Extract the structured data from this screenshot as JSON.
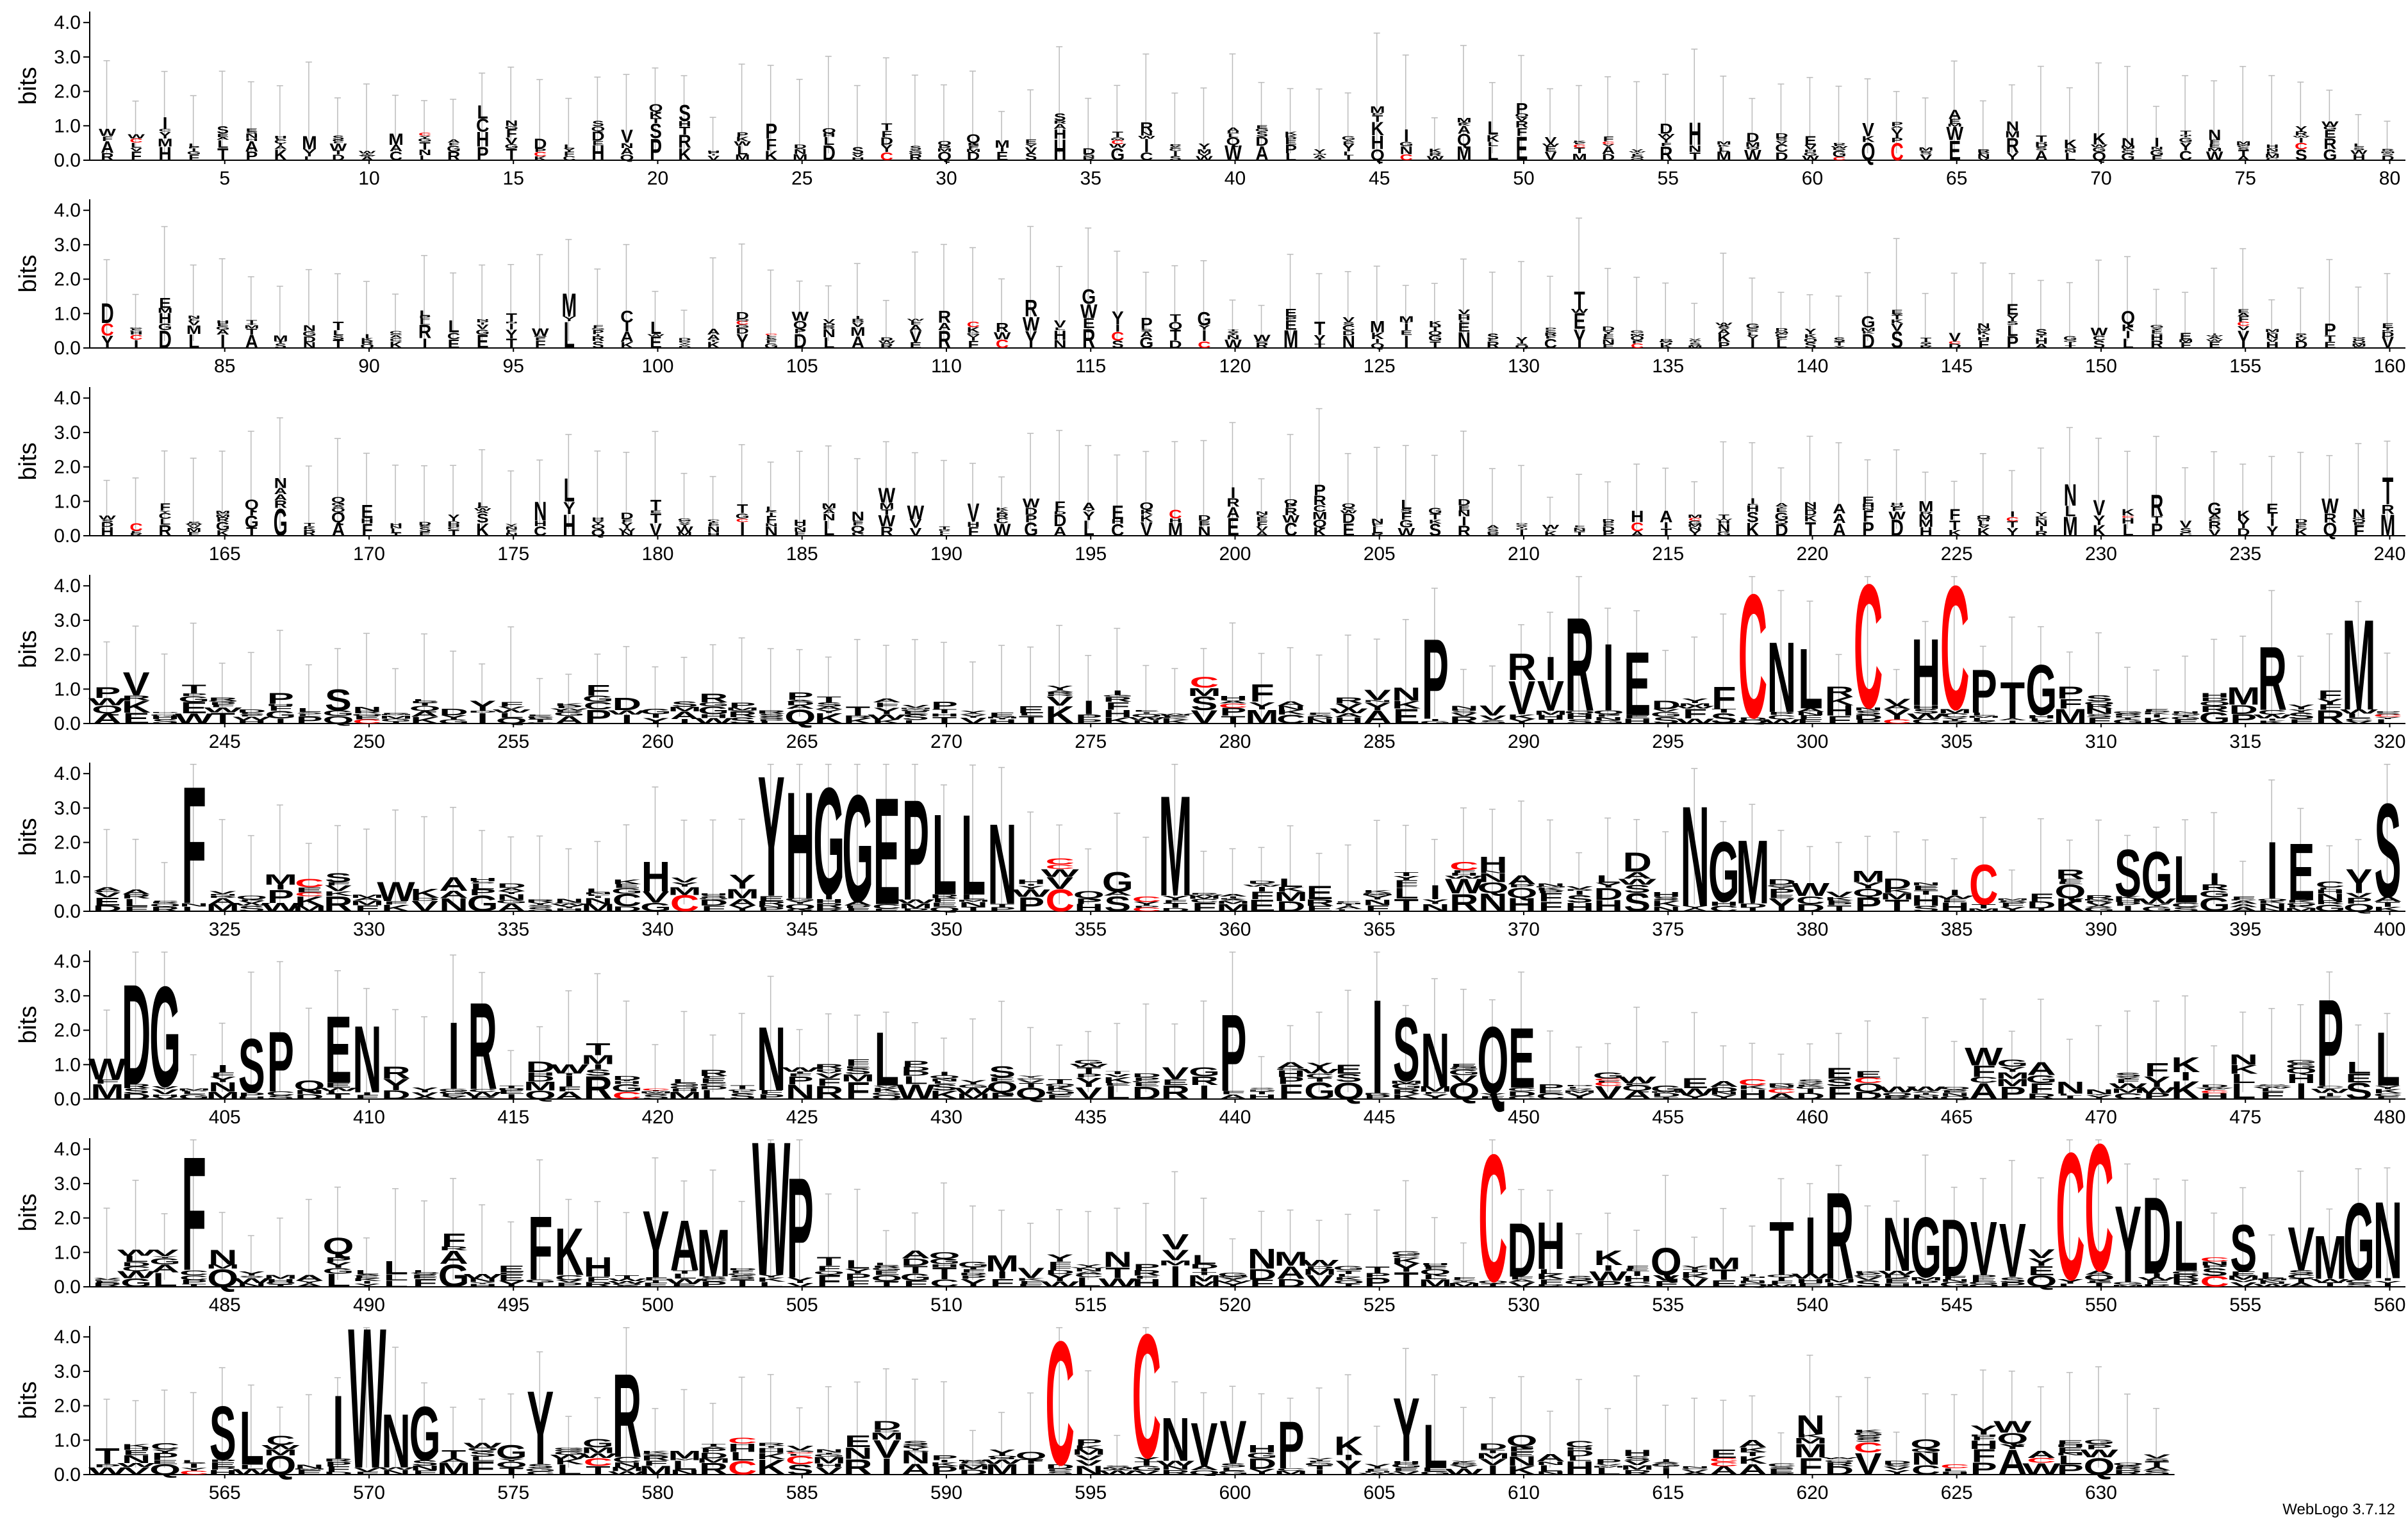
{
  "chart_data": {
    "type": "sequence-logo",
    "ylabel": "bits",
    "ylim": [
      0,
      4.32
    ],
    "yticks": [
      "0.0",
      "1.0",
      "2.0",
      "3.0",
      "4.0"
    ],
    "positions_per_row": 80,
    "total_positions": 632,
    "highlight_color": "#ff0000",
    "base_color": "#000000",
    "errorbar_color": "#bbbbbb",
    "rows": [
      {
        "start": 1,
        "end": 80,
        "xticks": [
          5,
          10,
          15,
          20,
          25,
          30,
          35,
          40,
          45,
          50,
          55,
          60,
          65,
          70,
          75,
          80
        ]
      },
      {
        "start": 81,
        "end": 160,
        "xticks": [
          85,
          90,
          95,
          100,
          105,
          110,
          115,
          120,
          125,
          130,
          135,
          140,
          145,
          150,
          155,
          160
        ]
      },
      {
        "start": 161,
        "end": 240,
        "xticks": [
          165,
          170,
          175,
          180,
          185,
          190,
          195,
          200,
          205,
          210,
          215,
          220,
          225,
          230,
          235,
          240
        ]
      },
      {
        "start": 241,
        "end": 320,
        "xticks": [
          245,
          250,
          255,
          260,
          265,
          270,
          275,
          280,
          285,
          290,
          295,
          300,
          305,
          310,
          315,
          320
        ]
      },
      {
        "start": 321,
        "end": 400,
        "xticks": [
          325,
          330,
          335,
          340,
          345,
          350,
          355,
          360,
          365,
          370,
          375,
          380,
          385,
          390,
          395,
          400
        ]
      },
      {
        "start": 401,
        "end": 480,
        "xticks": [
          405,
          410,
          415,
          420,
          425,
          430,
          435,
          440,
          445,
          450,
          455,
          460,
          465,
          470,
          475,
          480
        ]
      },
      {
        "start": 481,
        "end": 560,
        "xticks": [
          485,
          490,
          495,
          500,
          505,
          510,
          515,
          520,
          525,
          530,
          535,
          540,
          545,
          550,
          555,
          560
        ]
      },
      {
        "start": 561,
        "end": 632,
        "xticks": [
          565,
          570,
          575,
          580,
          585,
          590,
          595,
          600,
          605,
          610,
          615,
          620,
          625,
          630
        ]
      }
    ],
    "major_columns": [
      {
        "pos": 287,
        "stack": [
          [
            "P",
            2.4
          ]
        ]
      },
      {
        "pos": 290,
        "stack": [
          [
            "V",
            1.0
          ],
          [
            "R",
            0.8
          ]
        ]
      },
      {
        "pos": 291,
        "stack": [
          [
            "V",
            0.9
          ],
          [
            "I",
            0.7
          ]
        ]
      },
      {
        "pos": 292,
        "stack": [
          [
            "R",
            2.8
          ]
        ]
      },
      {
        "pos": 293,
        "stack": [
          [
            "I",
            2.0
          ]
        ]
      },
      {
        "pos": 294,
        "stack": [
          [
            "E",
            1.9
          ]
        ]
      },
      {
        "pos": 298,
        "stack": [
          [
            "C",
            3.7
          ]
        ],
        "red": true
      },
      {
        "pos": 299,
        "stack": [
          [
            "N",
            2.1
          ]
        ]
      },
      {
        "pos": 300,
        "stack": [
          [
            "L",
            1.8
          ]
        ]
      },
      {
        "pos": 302,
        "stack": [
          [
            "C",
            3.7
          ]
        ],
        "red": true
      },
      {
        "pos": 304,
        "stack": [
          [
            "H",
            2.0
          ]
        ]
      },
      {
        "pos": 305,
        "stack": [
          [
            "C",
            3.7
          ]
        ],
        "red": true
      },
      {
        "pos": 306,
        "stack": [
          [
            "P",
            1.3
          ]
        ]
      },
      {
        "pos": 307,
        "stack": [
          [
            "T",
            1.1
          ]
        ]
      },
      {
        "pos": 308,
        "stack": [
          [
            "G",
            1.5
          ]
        ]
      },
      {
        "pos": 316,
        "stack": [
          [
            "R",
            1.9
          ]
        ]
      },
      {
        "pos": 319,
        "stack": [
          [
            "M",
            2.7
          ]
        ]
      },
      {
        "pos": 324,
        "stack": [
          [
            "F",
            3.5
          ]
        ]
      },
      {
        "pos": 344,
        "stack": [
          [
            "Y",
            3.6
          ]
        ]
      },
      {
        "pos": 345,
        "stack": [
          [
            "H",
            3.2
          ]
        ]
      },
      {
        "pos": 346,
        "stack": [
          [
            "G",
            3.2
          ]
        ]
      },
      {
        "pos": 347,
        "stack": [
          [
            "G",
            3.2
          ]
        ]
      },
      {
        "pos": 348,
        "stack": [
          [
            "E",
            3.2
          ]
        ]
      },
      {
        "pos": 349,
        "stack": [
          [
            "P",
            3.0
          ]
        ]
      },
      {
        "pos": 350,
        "stack": [
          [
            "L",
            2.4
          ]
        ]
      },
      {
        "pos": 351,
        "stack": [
          [
            "L",
            2.4
          ]
        ]
      },
      {
        "pos": 352,
        "stack": [
          [
            "N",
            2.4
          ]
        ]
      },
      {
        "pos": 358,
        "stack": [
          [
            "M",
            3.0
          ]
        ]
      },
      {
        "pos": 376,
        "stack": [
          [
            "N",
            3.0
          ]
        ]
      },
      {
        "pos": 377,
        "stack": [
          [
            "G",
            1.8
          ]
        ]
      },
      {
        "pos": 378,
        "stack": [
          [
            "M",
            1.9
          ]
        ]
      },
      {
        "pos": 386,
        "stack": [
          [
            "C",
            1.2
          ]
        ],
        "red": true
      },
      {
        "pos": 391,
        "stack": [
          [
            "S",
            1.4
          ]
        ]
      },
      {
        "pos": 392,
        "stack": [
          [
            "G",
            1.4
          ]
        ]
      },
      {
        "pos": 393,
        "stack": [
          [
            "L",
            1.4
          ]
        ]
      },
      {
        "pos": 396,
        "stack": [
          [
            "I",
            1.7
          ]
        ]
      },
      {
        "pos": 397,
        "stack": [
          [
            "E",
            1.7
          ]
        ]
      },
      {
        "pos": 400,
        "stack": [
          [
            "S",
            2.8
          ]
        ]
      },
      {
        "pos": 402,
        "stack": [
          [
            "D",
            3.0
          ]
        ]
      },
      {
        "pos": 403,
        "stack": [
          [
            "G",
            3.0
          ]
        ]
      },
      {
        "pos": 406,
        "stack": [
          [
            "S",
            1.6
          ]
        ]
      },
      {
        "pos": 407,
        "stack": [
          [
            "P",
            1.8
          ]
        ]
      },
      {
        "pos": 409,
        "stack": [
          [
            "E",
            2.0
          ]
        ]
      },
      {
        "pos": 410,
        "stack": [
          [
            "N",
            2.0
          ]
        ]
      },
      {
        "pos": 413,
        "stack": [
          [
            "I",
            2.0
          ]
        ]
      },
      {
        "pos": 414,
        "stack": [
          [
            "R",
            2.6
          ]
        ]
      },
      {
        "pos": 424,
        "stack": [
          [
            "N",
            1.9
          ]
        ]
      },
      {
        "pos": 428,
        "stack": [
          [
            "L",
            1.6
          ]
        ]
      },
      {
        "pos": 440,
        "stack": [
          [
            "P",
            2.3
          ]
        ]
      },
      {
        "pos": 445,
        "stack": [
          [
            "I",
            2.8
          ]
        ]
      },
      {
        "pos": 446,
        "stack": [
          [
            "S",
            1.9
          ]
        ]
      },
      {
        "pos": 447,
        "stack": [
          [
            "N",
            1.6
          ]
        ]
      },
      {
        "pos": 449,
        "stack": [
          [
            "Q",
            2.0
          ]
        ]
      },
      {
        "pos": 450,
        "stack": [
          [
            "E",
            1.8
          ]
        ]
      },
      {
        "pos": 478,
        "stack": [
          [
            "P",
            2.6
          ]
        ]
      },
      {
        "pos": 480,
        "stack": [
          [
            "L",
            1.6
          ]
        ]
      },
      {
        "pos": 484,
        "stack": [
          [
            "F",
            3.4
          ]
        ]
      },
      {
        "pos": 496,
        "stack": [
          [
            "F",
            1.9
          ]
        ]
      },
      {
        "pos": 497,
        "stack": [
          [
            "K",
            1.4
          ]
        ]
      },
      {
        "pos": 500,
        "stack": [
          [
            "Y",
            2.0
          ]
        ]
      },
      {
        "pos": 501,
        "stack": [
          [
            "A",
            1.5
          ]
        ]
      },
      {
        "pos": 502,
        "stack": [
          [
            "M",
            1.4
          ]
        ]
      },
      {
        "pos": 504,
        "stack": [
          [
            "W",
            4.0
          ]
        ]
      },
      {
        "pos": 505,
        "stack": [
          [
            "P",
            3.0
          ]
        ]
      },
      {
        "pos": 529,
        "stack": [
          [
            "C",
            3.8
          ]
        ],
        "red": true
      },
      {
        "pos": 530,
        "stack": [
          [
            "D",
            1.6
          ]
        ]
      },
      {
        "pos": 531,
        "stack": [
          [
            "H",
            1.4
          ]
        ]
      },
      {
        "pos": 539,
        "stack": [
          [
            "T",
            1.6
          ]
        ]
      },
      {
        "pos": 540,
        "stack": [
          [
            "I",
            1.7
          ]
        ]
      },
      {
        "pos": 541,
        "stack": [
          [
            "R",
            2.6
          ]
        ]
      },
      {
        "pos": 543,
        "stack": [
          [
            "N",
            1.6
          ]
        ]
      },
      {
        "pos": 544,
        "stack": [
          [
            "G",
            1.8
          ]
        ]
      },
      {
        "pos": 545,
        "stack": [
          [
            "D",
            1.7
          ]
        ]
      },
      {
        "pos": 546,
        "stack": [
          [
            "V",
            1.6
          ]
        ]
      },
      {
        "pos": 547,
        "stack": [
          [
            "V",
            1.6
          ]
        ]
      },
      {
        "pos": 549,
        "stack": [
          [
            "C",
            3.8
          ]
        ],
        "red": true
      },
      {
        "pos": 550,
        "stack": [
          [
            "C",
            3.8
          ]
        ],
        "red": true
      },
      {
        "pos": 551,
        "stack": [
          [
            "Y",
            2.3
          ]
        ]
      },
      {
        "pos": 552,
        "stack": [
          [
            "D",
            2.3
          ]
        ]
      },
      {
        "pos": 553,
        "stack": [
          [
            "L",
            1.5
          ]
        ]
      },
      {
        "pos": 555,
        "stack": [
          [
            "S",
            1.4
          ]
        ]
      },
      {
        "pos": 557,
        "stack": [
          [
            "V",
            1.3
          ]
        ]
      },
      {
        "pos": 558,
        "stack": [
          [
            "M",
            1.3
          ]
        ]
      },
      {
        "pos": 559,
        "stack": [
          [
            "G",
            2.3
          ]
        ]
      },
      {
        "pos": 560,
        "stack": [
          [
            "N",
            2.3
          ]
        ]
      },
      {
        "pos": 565,
        "stack": [
          [
            "S",
            1.6
          ]
        ]
      },
      {
        "pos": 566,
        "stack": [
          [
            "L",
            1.6
          ]
        ]
      },
      {
        "pos": 569,
        "stack": [
          [
            "I",
            1.9
          ]
        ]
      },
      {
        "pos": 570,
        "stack": [
          [
            "W",
            4.2
          ]
        ]
      },
      {
        "pos": 571,
        "stack": [
          [
            "N",
            1.6
          ]
        ]
      },
      {
        "pos": 572,
        "stack": [
          [
            "G",
            1.6
          ]
        ]
      },
      {
        "pos": 576,
        "stack": [
          [
            "Y",
            2.2
          ]
        ]
      },
      {
        "pos": 579,
        "stack": [
          [
            "R",
            2.5
          ]
        ]
      },
      {
        "pos": 594,
        "stack": [
          [
            "C",
            3.7
          ]
        ],
        "red": true
      },
      {
        "pos": 597,
        "stack": [
          [
            "C",
            3.7
          ]
        ],
        "red": true
      },
      {
        "pos": 598,
        "stack": [
          [
            "N",
            1.3
          ]
        ]
      },
      {
        "pos": 599,
        "stack": [
          [
            "V",
            1.3
          ]
        ]
      },
      {
        "pos": 600,
        "stack": [
          [
            "V",
            1.3
          ]
        ]
      },
      {
        "pos": 602,
        "stack": [
          [
            "P",
            1.4
          ]
        ]
      },
      {
        "pos": 606,
        "stack": [
          [
            "Y",
            1.9
          ]
        ]
      },
      {
        "pos": 607,
        "stack": [
          [
            "L",
            1.3
          ]
        ]
      }
    ]
  },
  "credit": "WebLogo 3.7.12"
}
